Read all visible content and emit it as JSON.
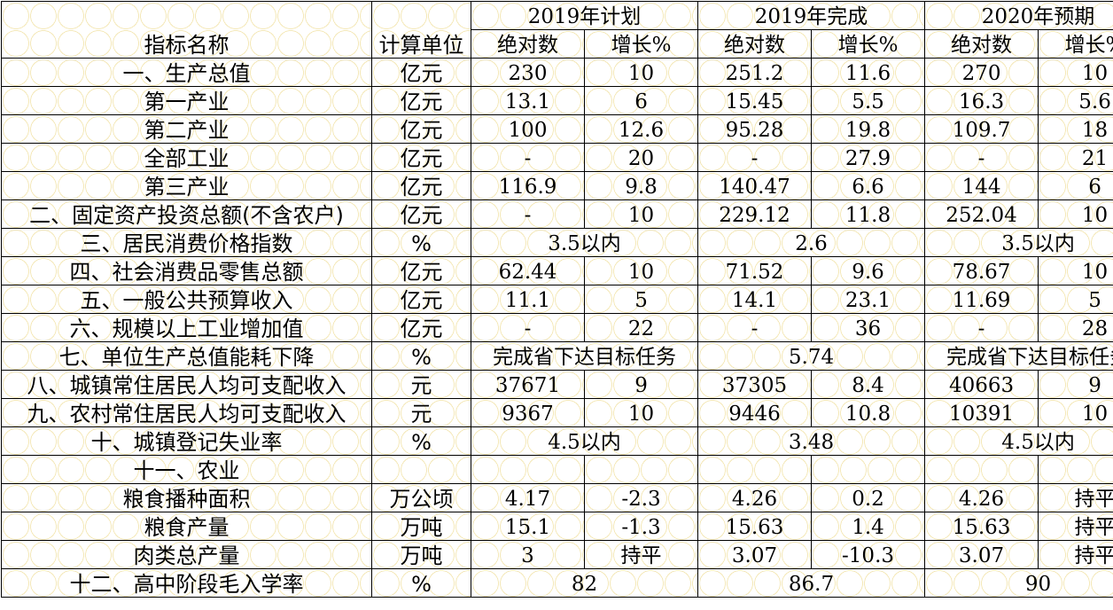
{
  "header": {
    "name_label": "指标名称",
    "unit_label": "计算单位",
    "groups": [
      "2019年计划",
      "2019年完成",
      "2020年预期"
    ],
    "sub_abs": "绝对数",
    "sub_growth": "增长%"
  },
  "rows": [
    {
      "name": "一、生产总值",
      "unit": "亿元",
      "v": [
        "230",
        "10",
        "251.2",
        "11.6",
        "270",
        "10"
      ]
    },
    {
      "name": "第一产业",
      "unit": "亿元",
      "v": [
        "13.1",
        "6",
        "15.45",
        "5.5",
        "16.3",
        "5.6"
      ]
    },
    {
      "name": "第二产业",
      "unit": "亿元",
      "v": [
        "100",
        "12.6",
        "95.28",
        "19.8",
        "109.7",
        "18"
      ]
    },
    {
      "name": "全部工业",
      "unit": "亿元",
      "v": [
        "-",
        "20",
        "-",
        "27.9",
        "-",
        "21"
      ]
    },
    {
      "name": "第三产业",
      "unit": "亿元",
      "v": [
        "116.9",
        "9.8",
        "140.47",
        "6.6",
        "144",
        "6"
      ]
    },
    {
      "name": "二、固定资产投资总额(不含农户)",
      "unit": "亿元",
      "v": [
        "-",
        "10",
        "229.12",
        "11.8",
        "252.04",
        "10"
      ]
    },
    {
      "name": "三、居民消费价格指数",
      "unit": "%",
      "m": [
        "3.5以内",
        "2.6",
        "3.5以内"
      ]
    },
    {
      "name": "四、社会消费品零售总额",
      "unit": "亿元",
      "v": [
        "62.44",
        "10",
        "71.52",
        "9.6",
        "78.67",
        "10"
      ]
    },
    {
      "name": "五、一般公共预算收入",
      "unit": "亿元",
      "v": [
        "11.1",
        "5",
        "14.1",
        "23.1",
        "11.69",
        "5"
      ]
    },
    {
      "name": "六、规模以上工业增加值",
      "unit": "亿元",
      "v": [
        "-",
        "22",
        "-",
        "36",
        "-",
        "28"
      ]
    },
    {
      "name": "七、单位生产总值能耗下降",
      "unit": "%",
      "m": [
        "完成省下达目标任务",
        "5.74",
        "完成省下达目标任务"
      ]
    },
    {
      "name": "八、城镇常住居民人均可支配收入",
      "unit": "元",
      "v": [
        "37671",
        "9",
        "37305",
        "8.4",
        "40663",
        "9"
      ]
    },
    {
      "name": "九、农村常住居民人均可支配收入",
      "unit": "元",
      "v": [
        "9367",
        "10",
        "9446",
        "10.8",
        "10391",
        "10"
      ]
    },
    {
      "name": "十、城镇登记失业率",
      "unit": "%",
      "m": [
        "4.5以内",
        "3.48",
        "4.5以内"
      ]
    },
    {
      "name": "十一、农业",
      "unit": "",
      "v": [
        "",
        "",
        "",
        "",
        "",
        ""
      ]
    },
    {
      "name": "粮食播种面积",
      "unit": "万公顷",
      "v": [
        "4.17",
        "-2.3",
        "4.26",
        "0.2",
        "4.26",
        "持平"
      ]
    },
    {
      "name": "粮食产量",
      "unit": "万吨",
      "v": [
        "15.1",
        "-1.3",
        "15.63",
        "1.4",
        "15.63",
        "持平"
      ]
    },
    {
      "name": "肉类总产量",
      "unit": "万吨",
      "v": [
        "3",
        "持平",
        "3.07",
        "-10.3",
        "3.07",
        "持平"
      ]
    },
    {
      "name": "十二、高中阶段毛入学率",
      "unit": "%",
      "m": [
        "82",
        "86.7",
        "90"
      ]
    }
  ]
}
